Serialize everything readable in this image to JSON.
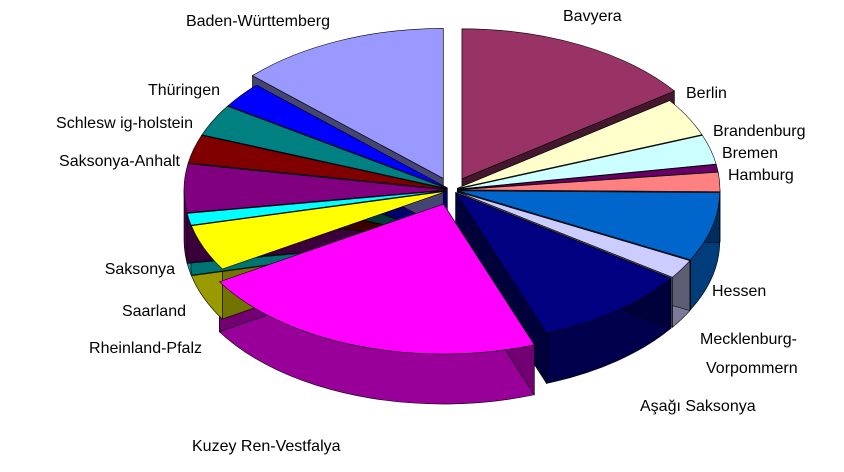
{
  "chart_data": {
    "type": "pie3d",
    "categories": [
      "Bavyera",
      "Berlin",
      "Brandenburg",
      "Bremen",
      "Hamburg",
      "Hessen",
      "Mecklenburg-Vorpommern",
      "Aşağı Saksonya",
      "Kuzey Ren-Vestfalya",
      "Rheinland-Pfalz",
      "Saarland",
      "Saksonya",
      "Saksonya-Anhalt",
      "Schlesw ig-holstein",
      "Thüringen",
      "Baden-Württemberg"
    ],
    "values": [
      12.4,
      3.4,
      2.6,
      0.66,
      1.7,
      6.1,
      1.7,
      8.0,
      18.1,
      4.1,
      1.05,
      4.3,
      2.5,
      2.8,
      2.3,
      10.7
    ],
    "colors": [
      "#993366",
      "#ffffcc",
      "#ccffff",
      "#660066",
      "#ff8080",
      "#0066cc",
      "#ccccff",
      "#000080",
      "#ff00ff",
      "#ffff00",
      "#00ffff",
      "#800080",
      "#800000",
      "#008080",
      "#0000ff",
      "#9999ff"
    ]
  }
}
